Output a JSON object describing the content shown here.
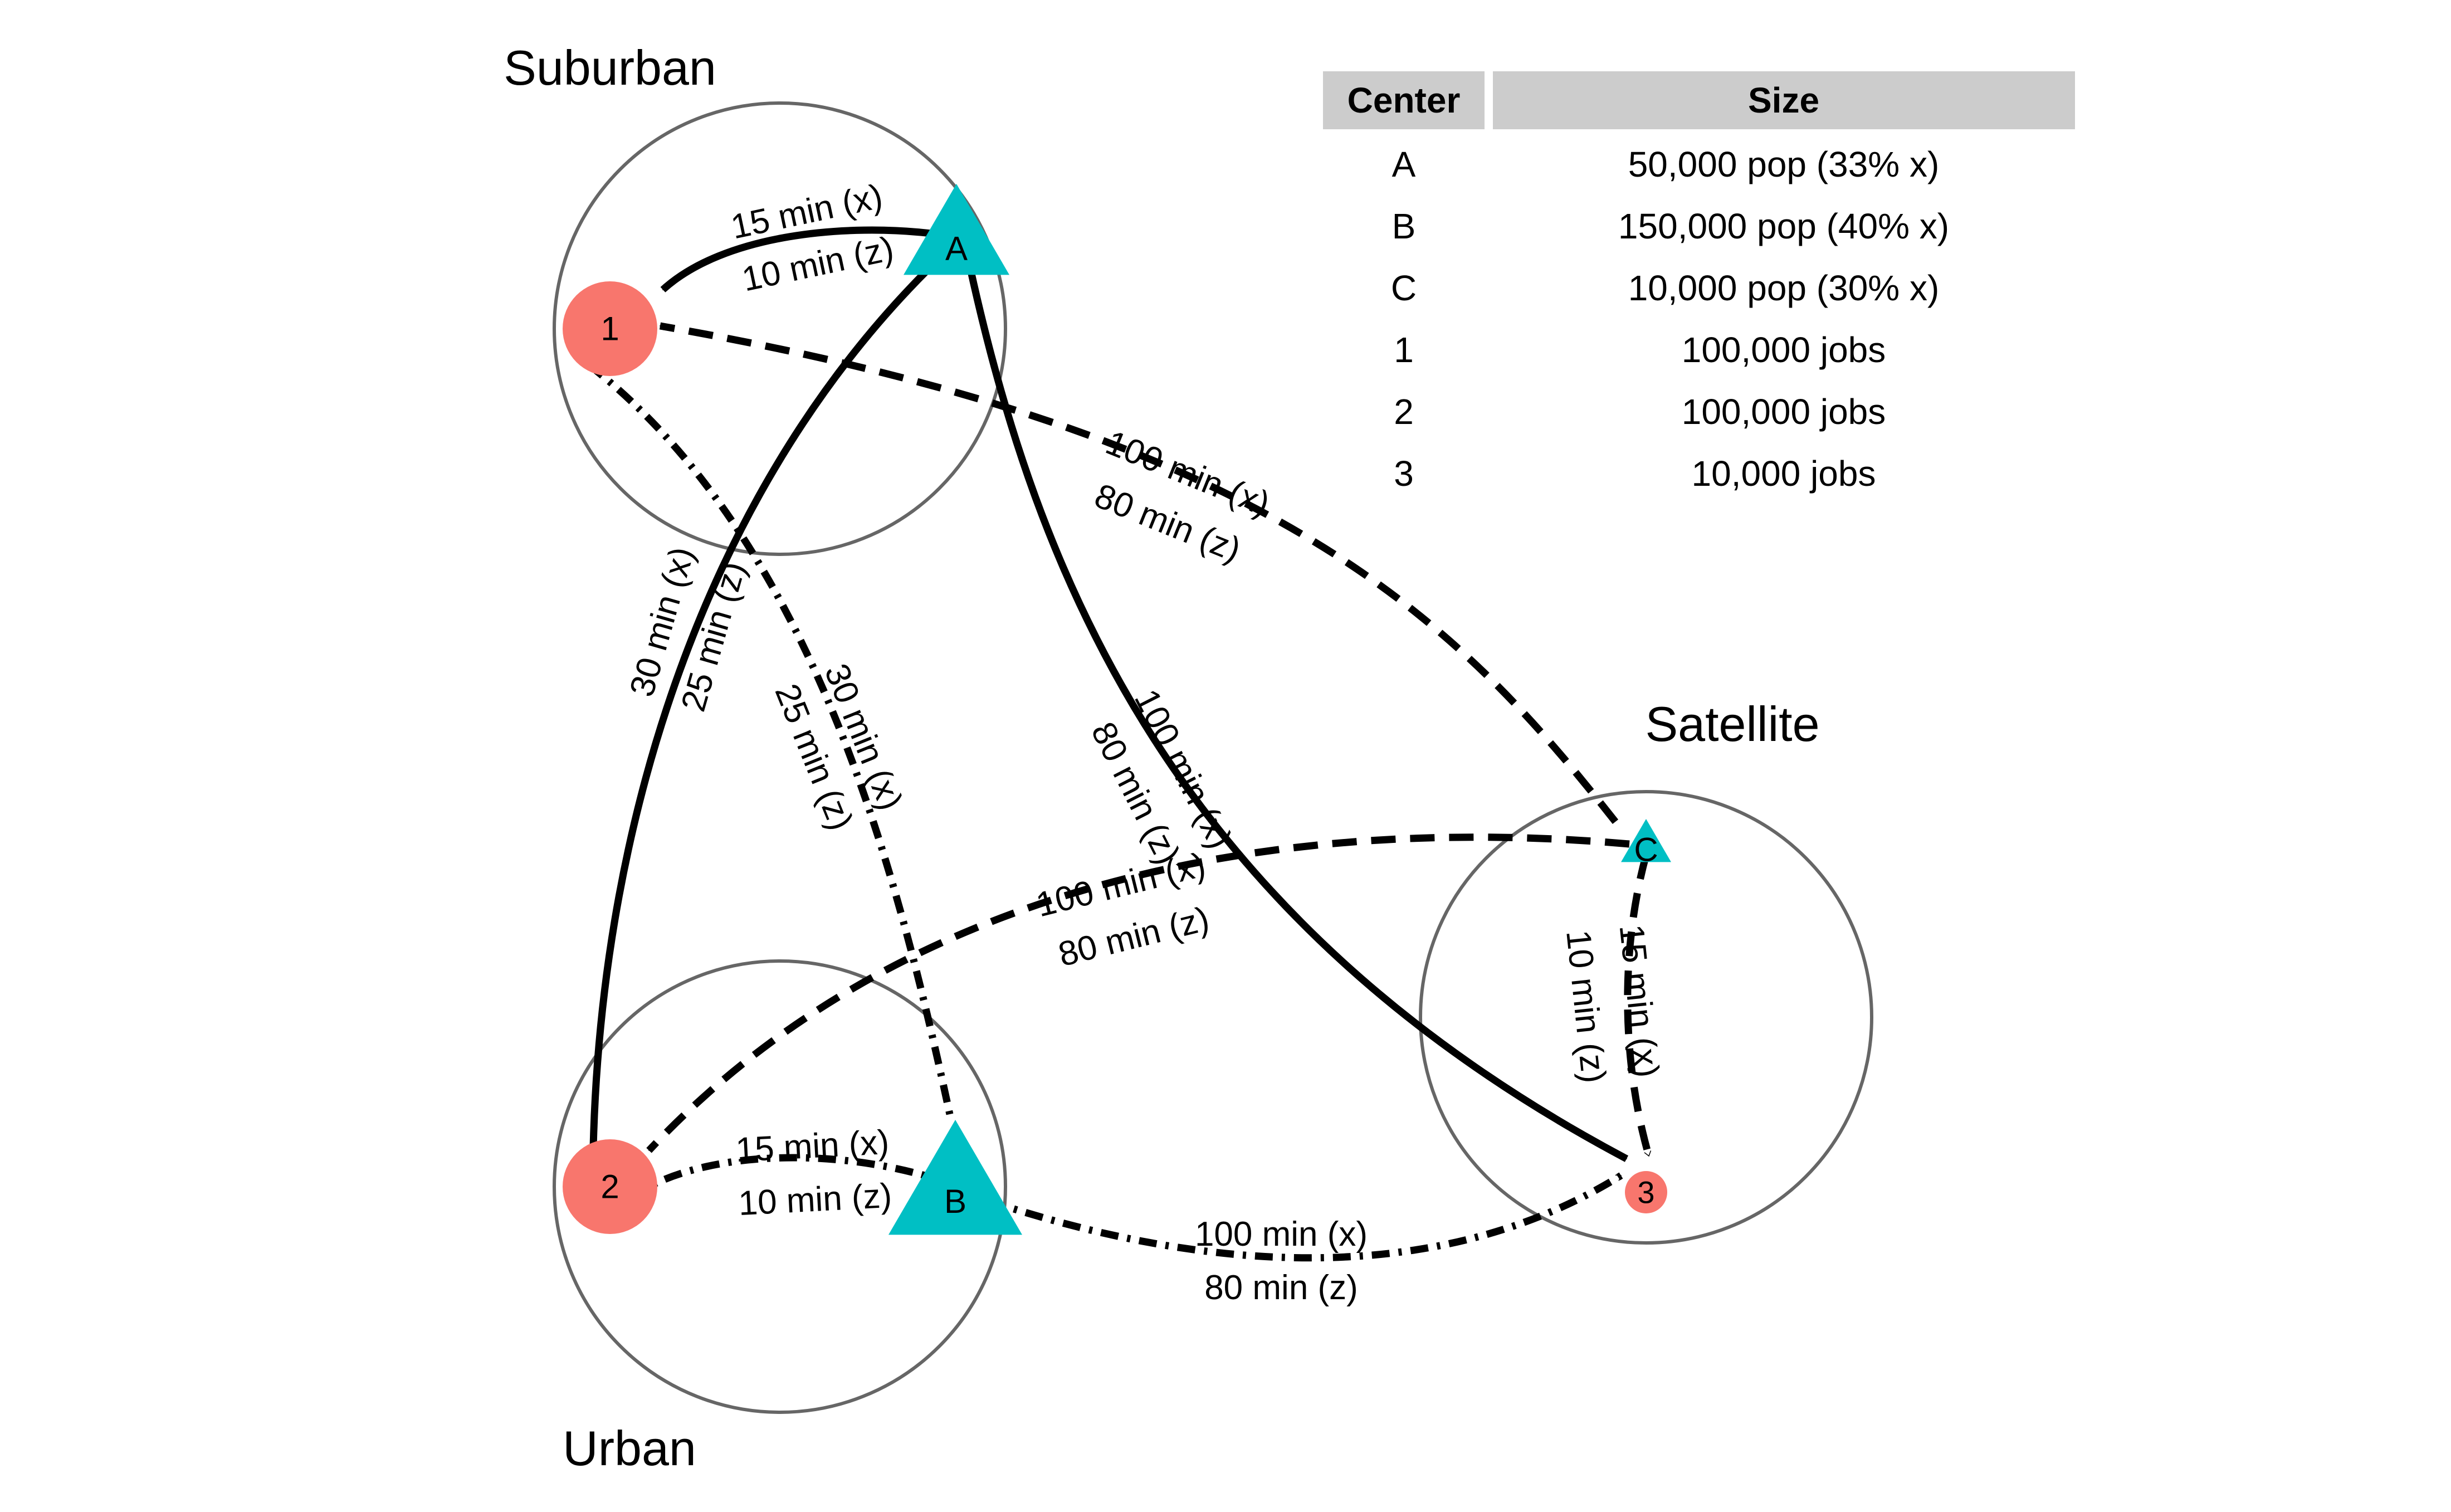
{
  "regions": [
    {
      "id": "suburban",
      "label": "Suburban"
    },
    {
      "id": "satellite",
      "label": "Satellite"
    },
    {
      "id": "urban",
      "label": "Urban"
    }
  ],
  "nodes": [
    {
      "id": "A",
      "label": "A",
      "kind": "center",
      "shape": "triangle"
    },
    {
      "id": "B",
      "label": "B",
      "kind": "center",
      "shape": "triangle"
    },
    {
      "id": "C",
      "label": "C",
      "kind": "center",
      "shape": "triangle"
    },
    {
      "id": "1",
      "label": "1",
      "kind": "jobs",
      "shape": "circle"
    },
    {
      "id": "2",
      "label": "2",
      "kind": "jobs",
      "shape": "circle"
    },
    {
      "id": "3",
      "label": "3",
      "kind": "jobs",
      "shape": "circle"
    }
  ],
  "edges": [
    {
      "id": "A-1",
      "from": "A",
      "to": "1",
      "style": "solid",
      "line1": "15 min (x)",
      "line2": "10 min (z)"
    },
    {
      "id": "A-2",
      "from": "A",
      "to": "2",
      "style": "solid",
      "line1": "30 min (x)",
      "line2": "25 min (z)"
    },
    {
      "id": "A-3",
      "from": "A",
      "to": "3",
      "style": "solid",
      "line1": "100 min (x)",
      "line2": "80 min (z)"
    },
    {
      "id": "C-1",
      "from": "C",
      "to": "1",
      "style": "longdash",
      "line1": "100 min (x)",
      "line2": "80 min (z)"
    },
    {
      "id": "C-2",
      "from": "C",
      "to": "2",
      "style": "longdash",
      "line1": "100 min (x)",
      "line2": "80 min (z)"
    },
    {
      "id": "C-3",
      "from": "C",
      "to": "3",
      "style": "longdash",
      "line1": "15 min (x)",
      "line2": "10 min (z)"
    },
    {
      "id": "B-1",
      "from": "B",
      "to": "1",
      "style": "dotdash",
      "line1": "30 min (x)",
      "line2": "25 min (z)"
    },
    {
      "id": "B-2",
      "from": "B",
      "to": "2",
      "style": "dotdash",
      "line1": "15 min (x)",
      "line2": "10 min (z)"
    },
    {
      "id": "B-3",
      "from": "B",
      "to": "3",
      "style": "dotdash",
      "line1": "100 min (x)",
      "line2": "80 min (z)"
    }
  ],
  "table": {
    "headers": [
      "Center",
      "Size"
    ],
    "rows": [
      [
        "A",
        "50,000 pop (33% x)"
      ],
      [
        "B",
        "150,000 pop (40% x)"
      ],
      [
        "C",
        "10,000 pop (30% x)"
      ],
      [
        "1",
        "100,000 jobs"
      ],
      [
        "2",
        "100,000 jobs"
      ],
      [
        "3",
        "10,000 jobs"
      ]
    ]
  },
  "colors": {
    "center": "#00BFC4",
    "jobs": "#F8766D",
    "region_outline": "#666666",
    "edge": "#000000",
    "table_header": "#CCCCCC"
  }
}
